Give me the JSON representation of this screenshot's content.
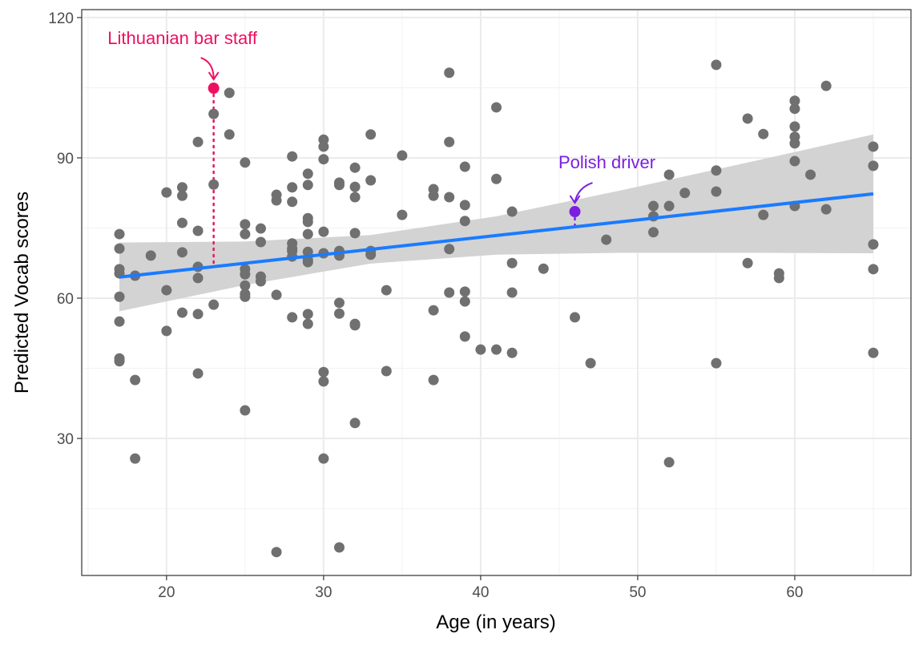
{
  "chart_data": {
    "type": "scatter",
    "title": "",
    "xlabel": "Age (in years)",
    "ylabel": "Predicted Vocab scores",
    "xlim": [
      14.6,
      67.4
    ],
    "ylim": [
      0.7,
      121.7
    ],
    "xticks": [
      20,
      30,
      40,
      50,
      60
    ],
    "yticks": [
      30,
      60,
      90,
      120
    ],
    "grid": true,
    "point_color": "#707070",
    "fit_color": "#1A7BFF",
    "ci_color": "#D3D3D3",
    "points": [
      [
        17,
        73.7
      ],
      [
        17,
        70.6
      ],
      [
        17,
        66.2
      ],
      [
        17,
        65.3
      ],
      [
        17,
        60.3
      ],
      [
        17,
        55.0
      ],
      [
        17,
        47.1
      ],
      [
        17,
        46.5
      ],
      [
        18,
        64.8
      ],
      [
        18,
        42.5
      ],
      [
        18,
        25.7
      ],
      [
        19,
        69.1
      ],
      [
        20,
        82.6
      ],
      [
        20,
        61.7
      ],
      [
        20,
        53.0
      ],
      [
        21,
        83.7
      ],
      [
        21,
        81.9
      ],
      [
        21,
        76.1
      ],
      [
        21,
        69.8
      ],
      [
        21,
        56.9
      ],
      [
        22,
        93.4
      ],
      [
        22,
        74.4
      ],
      [
        22,
        66.7
      ],
      [
        22,
        64.3
      ],
      [
        22,
        56.6
      ],
      [
        22,
        43.9
      ],
      [
        23,
        99.4
      ],
      [
        23,
        84.3
      ],
      [
        23,
        58.6
      ],
      [
        24,
        103.9
      ],
      [
        24,
        95.0
      ],
      [
        25,
        89.0
      ],
      [
        25,
        75.8
      ],
      [
        25,
        73.7
      ],
      [
        25,
        66.2
      ],
      [
        25,
        65.1
      ],
      [
        25,
        62.7
      ],
      [
        25,
        60.9
      ],
      [
        25,
        60.3
      ],
      [
        25,
        36.0
      ],
      [
        26,
        74.9
      ],
      [
        26,
        72.0
      ],
      [
        26,
        64.6
      ],
      [
        26,
        63.6
      ],
      [
        27,
        82.1
      ],
      [
        27,
        80.9
      ],
      [
        27,
        60.7
      ],
      [
        27,
        5.7
      ],
      [
        28,
        90.3
      ],
      [
        28,
        83.7
      ],
      [
        28,
        80.6
      ],
      [
        28,
        71.7
      ],
      [
        28,
        70.6
      ],
      [
        28,
        70.1
      ],
      [
        28,
        68.9
      ],
      [
        28,
        55.9
      ],
      [
        29,
        86.6
      ],
      [
        29,
        84.2
      ],
      [
        29,
        77.1
      ],
      [
        29,
        76.3
      ],
      [
        29,
        73.7
      ],
      [
        29,
        69.9
      ],
      [
        29,
        68.2
      ],
      [
        29,
        67.7
      ],
      [
        29,
        56.6
      ],
      [
        29,
        54.5
      ],
      [
        30,
        93.9
      ],
      [
        30,
        92.4
      ],
      [
        30,
        89.7
      ],
      [
        30,
        74.2
      ],
      [
        30,
        69.6
      ],
      [
        30,
        44.2
      ],
      [
        30,
        42.2
      ],
      [
        30,
        25.7
      ],
      [
        31,
        84.7
      ],
      [
        31,
        84.2
      ],
      [
        31,
        70.1
      ],
      [
        31,
        69.1
      ],
      [
        31,
        59.0
      ],
      [
        31,
        56.7
      ],
      [
        31,
        6.7
      ],
      [
        32,
        87.9
      ],
      [
        32,
        83.8
      ],
      [
        32,
        81.6
      ],
      [
        32,
        73.9
      ],
      [
        32,
        54.5
      ],
      [
        32,
        54.2
      ],
      [
        32,
        33.3
      ],
      [
        33,
        95.0
      ],
      [
        33,
        85.2
      ],
      [
        33,
        70.1
      ],
      [
        33,
        69.3
      ],
      [
        34,
        61.7
      ],
      [
        34,
        44.4
      ],
      [
        35,
        90.5
      ],
      [
        35,
        77.8
      ],
      [
        37,
        83.3
      ],
      [
        37,
        81.9
      ],
      [
        37,
        57.4
      ],
      [
        37,
        42.5
      ],
      [
        38,
        108.2
      ],
      [
        38,
        93.4
      ],
      [
        38,
        81.6
      ],
      [
        38,
        70.5
      ],
      [
        38,
        61.2
      ],
      [
        39,
        88.1
      ],
      [
        39,
        79.9
      ],
      [
        39,
        76.5
      ],
      [
        39,
        61.4
      ],
      [
        39,
        59.3
      ],
      [
        39,
        51.8
      ],
      [
        40,
        49.0
      ],
      [
        41,
        100.8
      ],
      [
        41,
        85.5
      ],
      [
        41,
        49.0
      ],
      [
        42,
        78.5
      ],
      [
        42,
        67.5
      ],
      [
        42,
        61.2
      ],
      [
        42,
        48.3
      ],
      [
        44,
        66.3
      ],
      [
        46,
        55.9
      ],
      [
        47,
        46.1
      ],
      [
        48,
        72.5
      ],
      [
        51,
        79.7
      ],
      [
        51,
        77.5
      ],
      [
        51,
        74.1
      ],
      [
        52,
        86.4
      ],
      [
        52,
        79.7
      ],
      [
        52,
        24.9
      ],
      [
        53,
        82.5
      ],
      [
        55,
        109.9
      ],
      [
        55,
        87.3
      ],
      [
        55,
        82.8
      ],
      [
        55,
        46.1
      ],
      [
        57,
        98.4
      ],
      [
        57,
        67.5
      ],
      [
        58,
        95.1
      ],
      [
        58,
        77.8
      ],
      [
        59,
        65.3
      ],
      [
        59,
        64.3
      ],
      [
        60,
        102.2
      ],
      [
        60,
        100.5
      ],
      [
        60,
        96.7
      ],
      [
        60,
        94.5
      ],
      [
        60,
        93.1
      ],
      [
        60,
        89.3
      ],
      [
        60,
        79.7
      ],
      [
        61,
        86.4
      ],
      [
        62,
        105.4
      ],
      [
        62,
        79.0
      ],
      [
        65,
        92.4
      ],
      [
        65,
        88.3
      ],
      [
        65,
        71.5
      ],
      [
        65,
        66.2
      ],
      [
        65,
        48.3
      ]
    ],
    "fit": {
      "x": [
        17,
        65
      ],
      "y": [
        64.5,
        82.3
      ]
    },
    "ci": {
      "x": [
        17,
        25,
        33,
        41,
        49,
        57,
        65
      ],
      "lower": [
        57.2,
        62.8,
        67.4,
        69.3,
        69.7,
        69.7,
        69.6
      ],
      "upper": [
        71.9,
        72.1,
        73.5,
        77.5,
        83.1,
        89.0,
        95.0
      ]
    },
    "annotations": [
      {
        "label": "Lithuanian bar staff",
        "x": 23,
        "y": 104.9,
        "fit_y": 66.7,
        "color": "#EE1060"
      },
      {
        "label": "Polish driver",
        "x": 46,
        "y": 78.5,
        "fit_y": 75.3,
        "color": "#7A1FE0"
      }
    ]
  }
}
